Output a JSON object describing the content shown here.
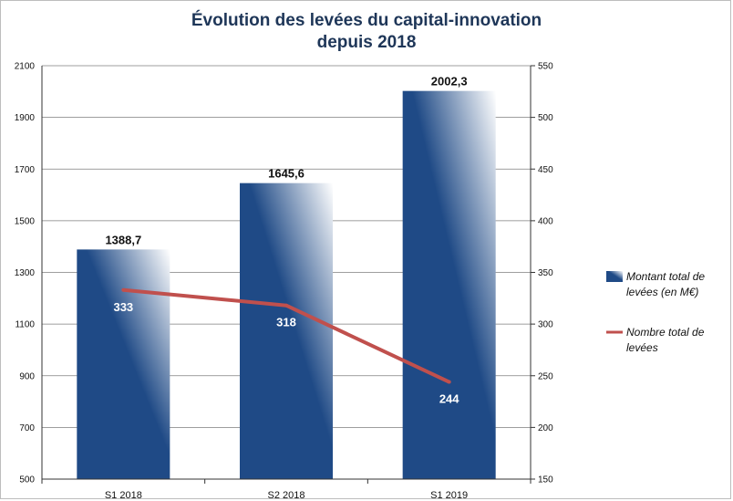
{
  "chart_data": {
    "type": "bar",
    "title_lines": [
      "Évolution des levées du capital-innovation",
      "depuis 2018"
    ],
    "categories": [
      "S1 2018",
      "S2 2018",
      "S1 2019"
    ],
    "series": [
      {
        "name": "Montant total de levées (en M€)",
        "name_lines": [
          "Montant total de",
          "levées (en M€)"
        ],
        "kind": "bar",
        "axis": "left",
        "values": [
          1388.7,
          1645.6,
          2002.3
        ],
        "labels": [
          "1388,7",
          "1645,6",
          "2002,3"
        ]
      },
      {
        "name": "Nombre total de levées",
        "name_lines": [
          "Nombre total de",
          "levées"
        ],
        "kind": "line",
        "axis": "right",
        "values": [
          333,
          318,
          244
        ],
        "labels": [
          "333",
          "318",
          "244"
        ]
      }
    ],
    "y_left": {
      "min": 500,
      "max": 2100,
      "ticks": [
        500,
        700,
        900,
        1100,
        1300,
        1500,
        1700,
        1900,
        2100
      ]
    },
    "y_right": {
      "min": 150,
      "max": 550,
      "ticks": [
        150,
        200,
        250,
        300,
        350,
        400,
        450,
        500,
        550
      ]
    },
    "grid": true,
    "legend_position": "right",
    "colors": {
      "bar": "#1f4a86",
      "line": "#c0504d",
      "title": "#1e3658"
    }
  }
}
